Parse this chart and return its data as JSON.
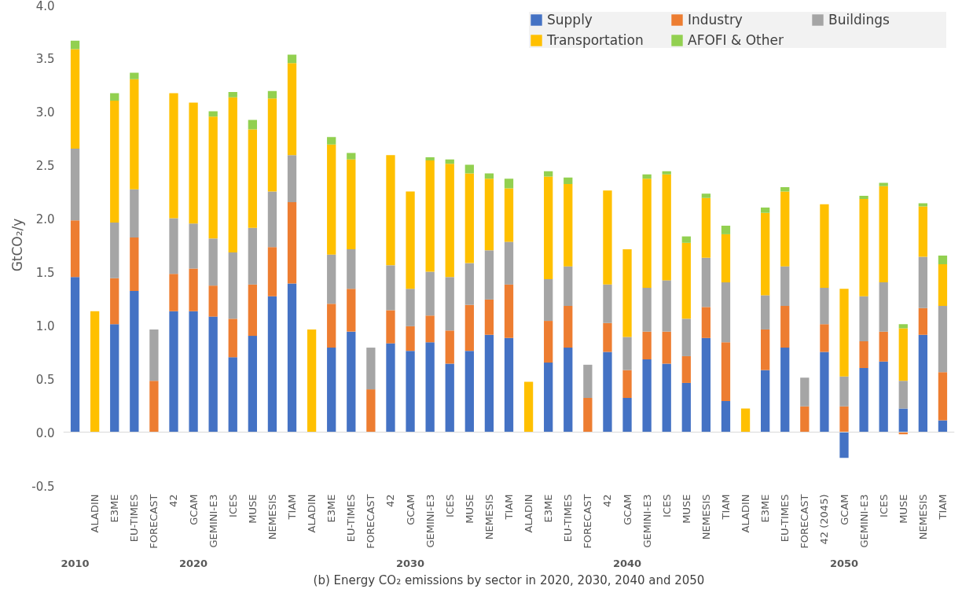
{
  "chart_data": {
    "type": "bar",
    "stacked": true,
    "xlabel": "(b) Energy CO₂ emissions by sector in 2020, 2030, 2040 and 2050",
    "ylabel": "GtCO₂/y",
    "categories": [
      null,
      "ALADIN",
      "E3ME",
      "EU-TIMES",
      "FORECAST",
      "42",
      "GCAM",
      "GEMINI-E3",
      "ICES",
      "MUSE",
      "NEMESIS",
      "TIAM",
      "ALADIN",
      "E3ME",
      "EU-TIMES",
      "FORECAST",
      "42",
      "GCAM",
      "GEMINI-E3",
      "ICES",
      "MUSE",
      "NEMESIS",
      "TIAM",
      "ALADIN",
      "E3ME",
      "EU-TIMES",
      "FORECAST",
      "42",
      "GCAM",
      "GEMINI-E3",
      "ICES",
      "MUSE",
      "NEMESIS",
      "TIAM",
      "ALADIN",
      "E3ME",
      "EU-TIMES",
      "FORECAST",
      "42 (2045)",
      "GCAM",
      "GEMINI-E3",
      "ICES",
      "MUSE",
      "NEMESIS",
      "TIAM"
    ],
    "annotations": [
      "2010",
      "2020",
      "2030",
      "2040",
      "2050"
    ],
    "series": [
      {
        "name": "Supply",
        "color": "#4472c4",
        "values": [
          1.45,
          null,
          1.01,
          1.32,
          null,
          1.13,
          1.13,
          1.08,
          0.7,
          0.9,
          1.27,
          1.39,
          null,
          0.79,
          0.94,
          null,
          0.83,
          0.76,
          0.84,
          0.64,
          0.76,
          0.91,
          0.88,
          null,
          0.65,
          0.79,
          null,
          0.75,
          0.32,
          0.68,
          0.64,
          0.46,
          0.88,
          0.29,
          null,
          0.58,
          0.79,
          null,
          0.75,
          -0.24,
          0.6,
          0.66,
          0.22,
          0.91,
          0.11
        ]
      },
      {
        "name": "Industry",
        "color": "#ed7d31",
        "values": [
          0.53,
          null,
          0.43,
          0.5,
          0.48,
          0.35,
          0.4,
          0.29,
          0.36,
          0.48,
          0.46,
          0.76,
          null,
          0.41,
          0.4,
          0.4,
          0.31,
          0.23,
          0.25,
          0.31,
          0.43,
          0.33,
          0.5,
          null,
          0.39,
          0.39,
          0.32,
          0.27,
          0.26,
          0.26,
          0.3,
          0.25,
          0.29,
          0.55,
          null,
          0.38,
          0.39,
          0.24,
          0.26,
          0.24,
          0.25,
          0.28,
          -0.02,
          0.25,
          0.45
        ]
      },
      {
        "name": "Buildings",
        "color": "#a5a5a5",
        "values": [
          0.67,
          null,
          0.52,
          0.45,
          0.48,
          0.52,
          0.42,
          0.44,
          0.62,
          0.53,
          0.52,
          0.44,
          null,
          0.46,
          0.37,
          0.39,
          0.42,
          0.35,
          0.41,
          0.5,
          0.39,
          0.46,
          0.4,
          null,
          0.39,
          0.37,
          0.31,
          0.36,
          0.31,
          0.41,
          0.48,
          0.35,
          0.46,
          0.56,
          null,
          0.32,
          0.37,
          0.27,
          0.34,
          0.28,
          0.42,
          0.46,
          0.26,
          0.48,
          0.62
        ]
      },
      {
        "name": "Transportation",
        "color": "#ffc000",
        "values": [
          0.93,
          1.13,
          1.14,
          1.03,
          null,
          1.17,
          1.13,
          1.14,
          1.45,
          0.92,
          0.87,
          0.86,
          0.96,
          1.03,
          0.84,
          null,
          1.03,
          0.91,
          1.04,
          1.06,
          0.84,
          0.67,
          0.5,
          0.47,
          0.96,
          0.77,
          null,
          0.88,
          0.82,
          1.02,
          0.99,
          0.71,
          0.56,
          0.45,
          0.22,
          0.77,
          0.7,
          null,
          0.78,
          0.82,
          0.91,
          0.9,
          0.49,
          0.47,
          0.39
        ]
      },
      {
        "name": "AFOFI & Other",
        "color": "#92d050",
        "values": [
          0.08,
          null,
          0.07,
          0.06,
          null,
          null,
          null,
          0.05,
          0.05,
          0.09,
          0.07,
          0.08,
          null,
          0.07,
          0.06,
          null,
          null,
          null,
          0.03,
          0.04,
          0.08,
          0.05,
          0.09,
          null,
          0.05,
          0.06,
          null,
          null,
          null,
          0.04,
          0.03,
          0.06,
          0.04,
          0.08,
          null,
          0.05,
          0.04,
          null,
          null,
          null,
          0.03,
          0.03,
          0.04,
          0.03,
          0.08
        ]
      }
    ],
    "ylim": [
      -0.5,
      4.0
    ],
    "yticks": [
      {
        "value": -0.5,
        "label": "-0.5"
      },
      {
        "value": 0,
        "label": "0.0"
      },
      {
        "value": 0.5,
        "label": "0.5"
      },
      {
        "value": 1,
        "label": "1.0"
      },
      {
        "value": 1.5,
        "label": "1.5"
      },
      {
        "value": 2,
        "label": "2.0"
      },
      {
        "value": 2.5,
        "label": "2.5"
      },
      {
        "value": 3,
        "label": "3.0"
      },
      {
        "value": 3.5,
        "label": "3.5"
      },
      {
        "value": 4,
        "label": "4.0"
      }
    ],
    "ref_lines": [
      {
        "axis": "y",
        "value": 0,
        "color": "#d9d9d9"
      }
    ],
    "legend": "top right"
  }
}
